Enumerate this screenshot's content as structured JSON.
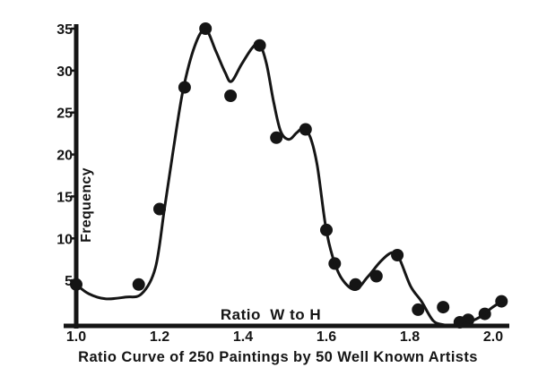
{
  "page": {
    "background_color": "#ffffff",
    "ink_color": "#151515"
  },
  "chart_data": {
    "type": "scatter",
    "has_fitted_curve": true,
    "title": "Ratio Curve of 250 Paintings by 50 Well Known Artists",
    "xlabel": "Ratio  W to H",
    "ylabel": "Frequency",
    "grid": false,
    "legend": false,
    "x_axis": {
      "min": 1.0,
      "max": 2.05,
      "tick_values": [
        1.0,
        1.2,
        1.4,
        1.6,
        1.8,
        2.0
      ],
      "tick_labels": [
        "1.0",
        "1.2",
        "1.4",
        "1.6",
        "1.8",
        "2.0"
      ]
    },
    "y_axis": {
      "min": 0,
      "max": 35,
      "tick_values": [
        35,
        30,
        25,
        20,
        15,
        10,
        5
      ],
      "tick_labels": [
        "35",
        "30",
        "25",
        "20",
        "15",
        "10",
        "5"
      ]
    },
    "points": [
      [
        1.0,
        4.5
      ],
      [
        1.15,
        4.5
      ],
      [
        1.2,
        13.5
      ],
      [
        1.26,
        28
      ],
      [
        1.31,
        35
      ],
      [
        1.37,
        27
      ],
      [
        1.44,
        33
      ],
      [
        1.48,
        22
      ],
      [
        1.55,
        23
      ],
      [
        1.6,
        11
      ],
      [
        1.62,
        7
      ],
      [
        1.67,
        4.5
      ],
      [
        1.72,
        5.5
      ],
      [
        1.77,
        8
      ],
      [
        1.82,
        1.5
      ],
      [
        1.88,
        1.8
      ],
      [
        1.92,
        0
      ],
      [
        1.94,
        0.3
      ],
      [
        1.98,
        1
      ],
      [
        2.02,
        2.5
      ]
    ],
    "curve": [
      [
        1.0,
        4.5
      ],
      [
        1.03,
        3.4
      ],
      [
        1.07,
        2.8
      ],
      [
        1.118,
        3.0
      ],
      [
        1.157,
        3.4
      ],
      [
        1.19,
        6.5
      ],
      [
        1.211,
        13.3
      ],
      [
        1.232,
        20.3
      ],
      [
        1.256,
        27.6
      ],
      [
        1.284,
        32.9
      ],
      [
        1.31,
        34.9
      ],
      [
        1.335,
        32.3
      ],
      [
        1.357,
        29.8
      ],
      [
        1.372,
        28.7
      ],
      [
        1.396,
        30.7
      ],
      [
        1.422,
        32.7
      ],
      [
        1.439,
        33.2
      ],
      [
        1.456,
        30.9
      ],
      [
        1.473,
        26.4
      ],
      [
        1.49,
        22.8
      ],
      [
        1.51,
        21.8
      ],
      [
        1.529,
        22.6
      ],
      [
        1.544,
        23.1
      ],
      [
        1.561,
        22.1
      ],
      [
        1.578,
        18.7
      ],
      [
        1.598,
        11.5
      ],
      [
        1.615,
        7.8
      ],
      [
        1.637,
        5.2
      ],
      [
        1.669,
        3.9
      ],
      [
        1.699,
        5.4
      ],
      [
        1.731,
        7.3
      ],
      [
        1.757,
        8.3
      ],
      [
        1.774,
        7.7
      ],
      [
        1.802,
        4.3
      ],
      [
        1.828,
        2.5
      ],
      [
        1.856,
        0.2
      ],
      [
        1.882,
        -0.3
      ],
      [
        1.91,
        -0.5
      ],
      [
        1.942,
        0.0
      ],
      [
        1.976,
        0.85
      ],
      [
        1.996,
        1.7
      ],
      [
        2.024,
        2.6
      ]
    ]
  }
}
